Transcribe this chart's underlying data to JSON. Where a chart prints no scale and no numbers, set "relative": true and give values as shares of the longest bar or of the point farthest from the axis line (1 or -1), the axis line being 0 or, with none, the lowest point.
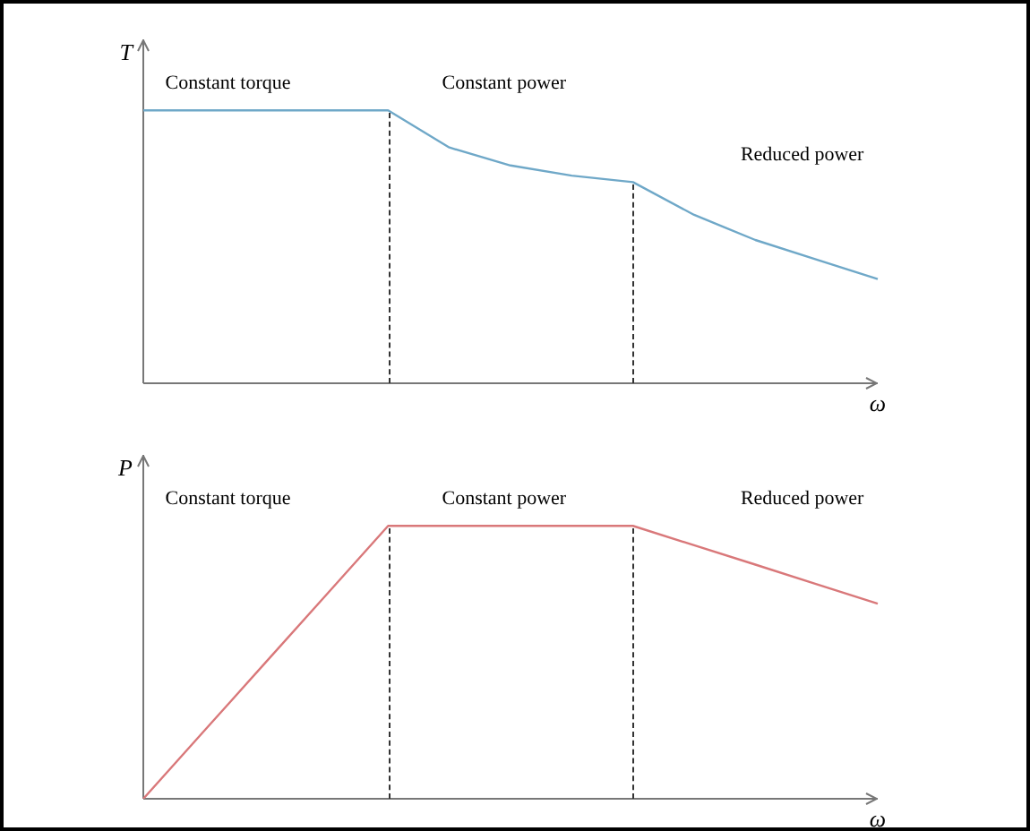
{
  "chart_data": [
    {
      "type": "line",
      "relative": true,
      "xlabel": "ω",
      "ylabel": "T",
      "marker": "none",
      "line_style": "solid",
      "categories": [
        null,
        null,
        null,
        null,
        null,
        null,
        null,
        null,
        null,
        null,
        null,
        null,
        null
      ],
      "series": [
        {
          "color": "#6fa8c8",
          "values": [
            1,
            1,
            1,
            1,
            1,
            0.864,
            0.798,
            0.761,
            0.737,
            0.617,
            0.525,
            0.453,
            0.382
          ]
        }
      ],
      "annotations": [
        "Constant torque",
        "Constant power",
        "Reduced power"
      ]
    },
    {
      "type": "line",
      "relative": true,
      "xlabel": "ω",
      "ylabel": "P",
      "marker": "none",
      "line_style": "solid",
      "categories": [
        null,
        null,
        null,
        null,
        null,
        null,
        null,
        null,
        null,
        null,
        null,
        null,
        null
      ],
      "series": [
        {
          "color": "#d9787a",
          "values": [
            0,
            0.25,
            0.5,
            0.75,
            1,
            1,
            1,
            1,
            1,
            0.929,
            0.858,
            0.786,
            0.715
          ]
        }
      ],
      "annotations": [
        "Constant torque",
        "Constant power",
        "Reduced power"
      ]
    }
  ]
}
